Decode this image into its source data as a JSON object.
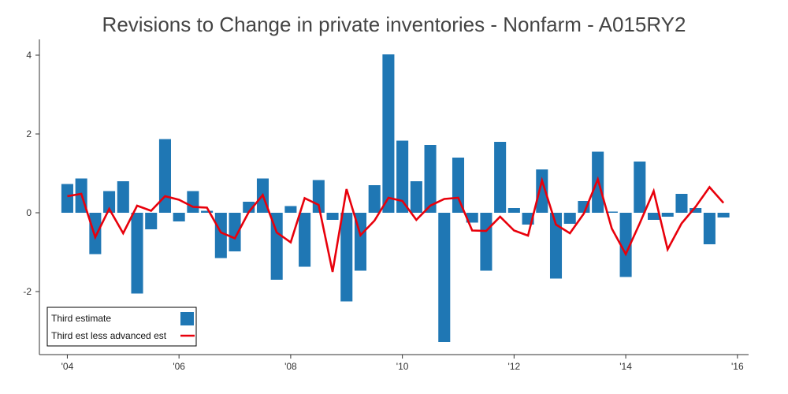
{
  "chart_data": {
    "type": "bar",
    "title": "Revisions to Change in private inventories - Nonfarm - A015RY2",
    "xlabel": "",
    "ylabel": "",
    "x_start": 2004.0,
    "x_step": 0.25,
    "xlim": [
      2003.5,
      2016.2
    ],
    "ylim": [
      -3.6,
      4.4
    ],
    "y_ticks": [
      4,
      2,
      0,
      -2
    ],
    "y_tick_labels": [
      "4",
      "2",
      "0",
      "-2"
    ],
    "x_ticks": [
      2004,
      2006,
      2008,
      2010,
      2012,
      2014,
      2016
    ],
    "x_tick_labels": [
      "'04",
      "'06",
      "'08",
      "'10",
      "'12",
      "'14",
      "'16"
    ],
    "grid": false,
    "legend_position": "bottom-left",
    "colors": {
      "bar": "#1f77b4",
      "line": "#e8000b"
    },
    "series": [
      {
        "name": "Third estimate",
        "type": "bar",
        "values": [
          0.73,
          0.87,
          -1.05,
          0.55,
          0.8,
          -2.05,
          -0.42,
          1.87,
          -0.22,
          0.55,
          0.05,
          -1.15,
          -0.98,
          0.28,
          0.87,
          -1.7,
          0.17,
          -1.37,
          0.83,
          -0.18,
          -2.25,
          -1.47,
          0.7,
          4.02,
          1.83,
          0.8,
          1.72,
          -3.28,
          1.4,
          -0.25,
          -1.47,
          1.8,
          0.12,
          -0.3,
          1.1,
          -1.67,
          -0.28,
          0.3,
          1.55,
          0.03,
          -1.63,
          1.3,
          -0.18,
          -0.1,
          0.48,
          0.12,
          -0.8,
          -0.12
        ]
      },
      {
        "name": "Third est less advanced est",
        "type": "line",
        "values": [
          0.42,
          0.48,
          -0.62,
          0.1,
          -0.52,
          0.18,
          0.05,
          0.42,
          0.33,
          0.15,
          0.13,
          -0.5,
          -0.65,
          0.02,
          0.45,
          -0.5,
          -0.75,
          0.37,
          0.2,
          -1.5,
          0.6,
          -0.57,
          -0.2,
          0.38,
          0.3,
          -0.18,
          0.18,
          0.35,
          0.38,
          -0.45,
          -0.46,
          -0.1,
          -0.45,
          -0.58,
          0.82,
          -0.3,
          -0.52,
          -0.02,
          0.85,
          -0.4,
          -1.05,
          -0.27,
          0.55,
          -0.93,
          -0.27,
          0.15,
          0.65,
          0.25
        ]
      }
    ]
  }
}
